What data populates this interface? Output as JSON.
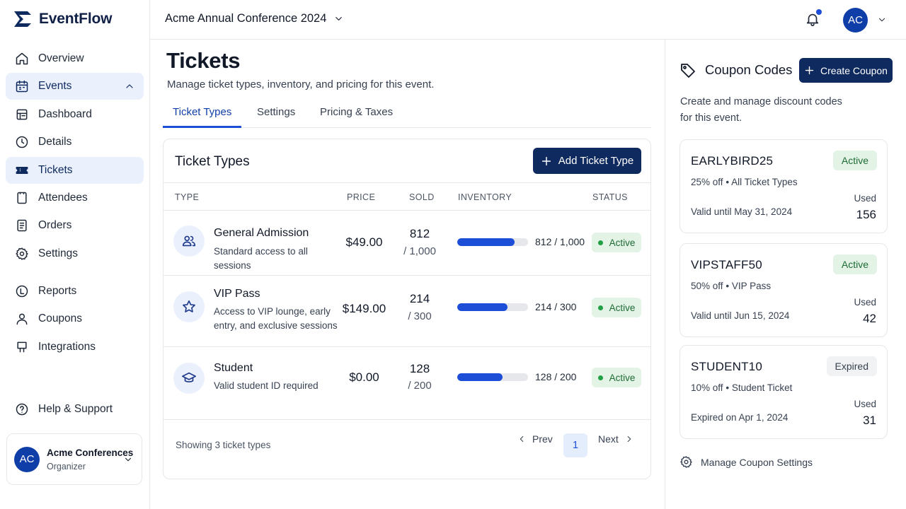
{
  "app": {
    "name": "EventFlow"
  },
  "sidebar": {
    "items": [
      {
        "label": "Overview"
      },
      {
        "label": "Events"
      },
      {
        "label": "Dashboard"
      },
      {
        "label": "Details"
      },
      {
        "label": "Tickets"
      },
      {
        "label": "Attendees"
      },
      {
        "label": "Orders"
      },
      {
        "label": "Settings"
      },
      {
        "label": "Reports"
      },
      {
        "label": "Coupons"
      },
      {
        "label": "Integrations"
      }
    ],
    "help": "Help & Support",
    "org": {
      "initials": "AC",
      "name": "Acme Conferences",
      "role": "Organizer"
    }
  },
  "topbar": {
    "event": "Acme Annual Conference 2024",
    "user_initials": "AC"
  },
  "main": {
    "title": "Tickets",
    "subtitle": "Manage ticket types, inventory, and pricing for this event.",
    "tabs": [
      {
        "label": "Ticket Types"
      },
      {
        "label": "Settings"
      },
      {
        "label": "Pricing & Taxes"
      }
    ],
    "card": {
      "title": "Ticket Types",
      "add_button": "Add Ticket Type",
      "columns": {
        "type": "TYPE",
        "price": "PRICE",
        "sold": "SOLD",
        "inventory": "INVENTORY",
        "status": "STATUS"
      },
      "rows": [
        {
          "icon": "users-icon",
          "name": "General Admission",
          "description": "Standard access to all sessions",
          "price": "$49.00",
          "sold": "812",
          "capacity": "/ 1,000",
          "inventory": "812 / 1,000",
          "fill": 0.812,
          "status": "Active"
        },
        {
          "icon": "star-icon",
          "name": "VIP Pass",
          "description": "Access to VIP lounge, early entry, and exclusive sessions",
          "price": "$149.00",
          "sold": "214",
          "capacity": "/ 300",
          "inventory": "214 / 300",
          "fill": 0.713,
          "status": "Active"
        },
        {
          "icon": "graduation-cap-icon",
          "name": "Student",
          "description": "Valid student ID required",
          "price": "$0.00",
          "sold": "128",
          "capacity": "/ 200",
          "inventory": "128 / 200",
          "fill": 0.64,
          "status": "Active"
        }
      ],
      "footer": {
        "showing": "Showing 3 ticket types",
        "prev": "Prev",
        "page": "1",
        "next": "Next"
      }
    }
  },
  "coupons": {
    "title": "Coupon Codes",
    "create_button": "Create Coupon",
    "description": "Create and manage discount codes for this event.",
    "items": [
      {
        "code": "EARLYBIRD25",
        "status": "Active",
        "detail_a": "25% off",
        "detail_b": "All Ticket Types",
        "validity": "Valid until May 31, 2024",
        "used_label": "Used",
        "used": "156"
      },
      {
        "code": "VIPSTAFF50",
        "status": "Active",
        "detail_a": "50% off",
        "detail_b": "VIP Pass",
        "validity": "Valid until Jun 15, 2024",
        "used_label": "Used",
        "used": "42"
      },
      {
        "code": "STUDENT10",
        "status": "Expired",
        "detail_a": "10% off",
        "detail_b": "Student Ticket",
        "validity": "Expired on Apr 1, 2024",
        "used_label": "Used",
        "used": "31"
      }
    ],
    "manage": "Manage Coupon Settings",
    "separator": "•"
  },
  "colors": {
    "primary": "#0f2a5e",
    "accent": "#1d4ed8",
    "active_bg": "#e3f3e6",
    "active_text": "#1f6b35"
  }
}
